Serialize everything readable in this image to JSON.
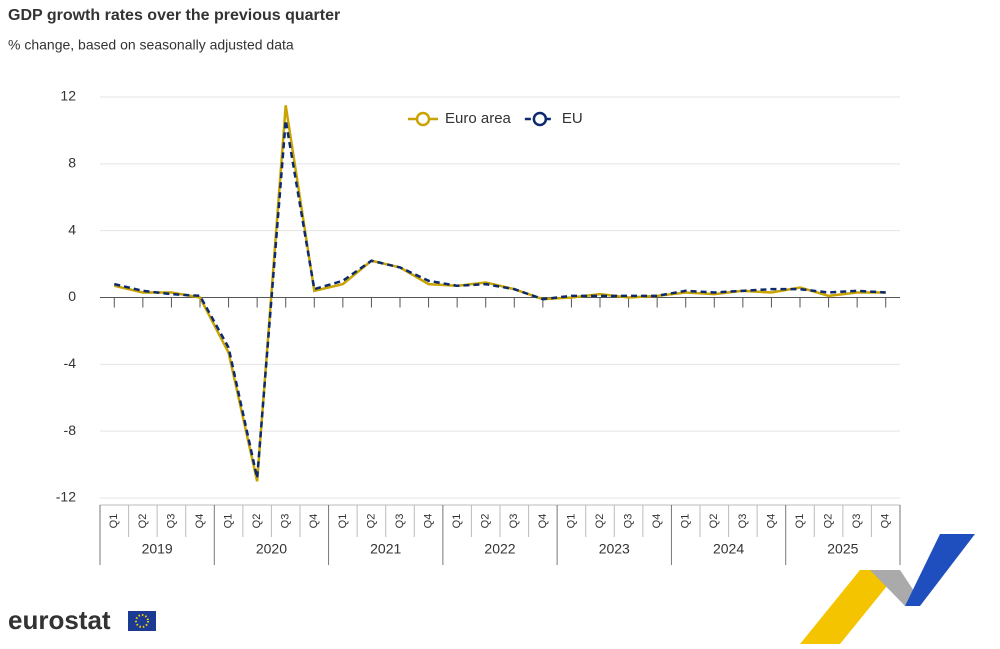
{
  "chart_data": {
    "type": "line",
    "title": "GDP growth rates over the previous quarter",
    "subtitle": "% change, based on seasonally adjusted data",
    "categories": [
      "Q1",
      "Q2",
      "Q3",
      "Q4",
      "Q1",
      "Q2",
      "Q3",
      "Q4",
      "Q1",
      "Q2",
      "Q3",
      "Q4",
      "Q1",
      "Q2",
      "Q3",
      "Q4",
      "Q1",
      "Q2",
      "Q3",
      "Q4",
      "Q1",
      "Q2",
      "Q3",
      "Q4",
      "Q1",
      "Q2",
      "Q3",
      "Q4"
    ],
    "category_groups": [
      "2019",
      "2020",
      "2021",
      "2022",
      "2023",
      "2024",
      "2025"
    ],
    "series": [
      {
        "name": "Euro area",
        "color": "#c9a400",
        "dashed": false,
        "values": [
          0.7,
          0.3,
          0.3,
          0.0,
          -3.3,
          -11.0,
          11.5,
          0.4,
          0.8,
          2.2,
          1.8,
          0.8,
          0.7,
          0.9,
          0.5,
          -0.1,
          0.0,
          0.2,
          0.0,
          0.1,
          0.3,
          0.2,
          0.4,
          0.3,
          0.6,
          0.1,
          0.3,
          0.3
        ]
      },
      {
        "name": "EU",
        "color": "#0e2a6e",
        "dashed": true,
        "values": [
          0.8,
          0.4,
          0.2,
          0.1,
          -3.0,
          -10.8,
          10.6,
          0.5,
          1.0,
          2.2,
          1.8,
          1.0,
          0.7,
          0.8,
          0.5,
          -0.1,
          0.1,
          0.1,
          0.1,
          0.1,
          0.4,
          0.3,
          0.4,
          0.5,
          0.5,
          0.3,
          0.4,
          0.3
        ]
      }
    ],
    "ylim": [
      -12,
      12
    ],
    "yticks": [
      -12,
      -8,
      -4,
      0,
      4,
      8,
      12
    ],
    "grid": true,
    "legend": "top"
  },
  "branding": "eurostat"
}
